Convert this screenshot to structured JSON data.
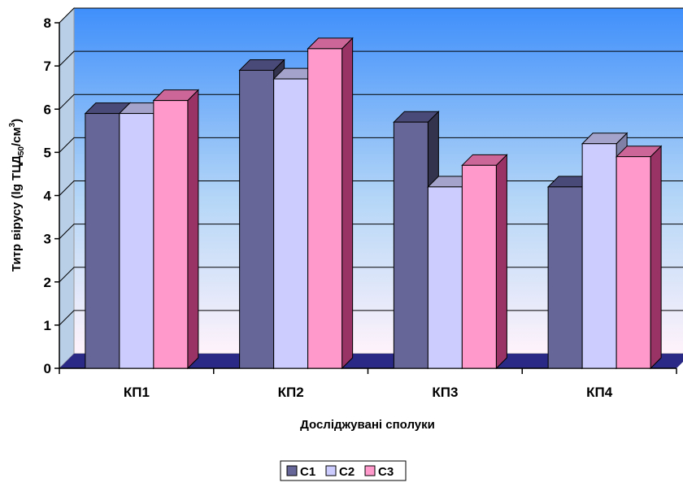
{
  "chart_data": {
    "type": "bar",
    "categories": [
      "КП1",
      "КП2",
      "КП3",
      "КП4"
    ],
    "series": [
      {
        "name": "С1",
        "values": [
          5.9,
          6.9,
          5.7,
          4.2
        ]
      },
      {
        "name": "С2",
        "values": [
          5.9,
          6.7,
          4.2,
          5.2
        ]
      },
      {
        "name": "С3",
        "values": [
          6.2,
          7.4,
          4.7,
          4.9
        ]
      }
    ],
    "xlabel": "Досліджувані сполуки",
    "ylabel": {
      "main": "Титр вірусу (lg ТЦД",
      "sub": "50",
      "mid": "/см",
      "sup": "3",
      "end": ")"
    },
    "ylim": [
      0,
      8
    ],
    "yticks": [
      "0",
      "1",
      "2",
      "3",
      "4",
      "5",
      "6",
      "7",
      "8"
    ],
    "grid": true,
    "legend_position": "bottom",
    "colors": {
      "series": [
        "#666699",
        "#ccccff",
        "#ff99cc"
      ],
      "series_top": [
        "#4a4a78",
        "#a3a3cc",
        "#cc6699"
      ],
      "series_side": [
        "#33334d",
        "#8080a6",
        "#993366"
      ],
      "wall_top": "#3f8ffb",
      "wall_bottom": "#fff3fb",
      "floor": "#2a2a86"
    }
  }
}
